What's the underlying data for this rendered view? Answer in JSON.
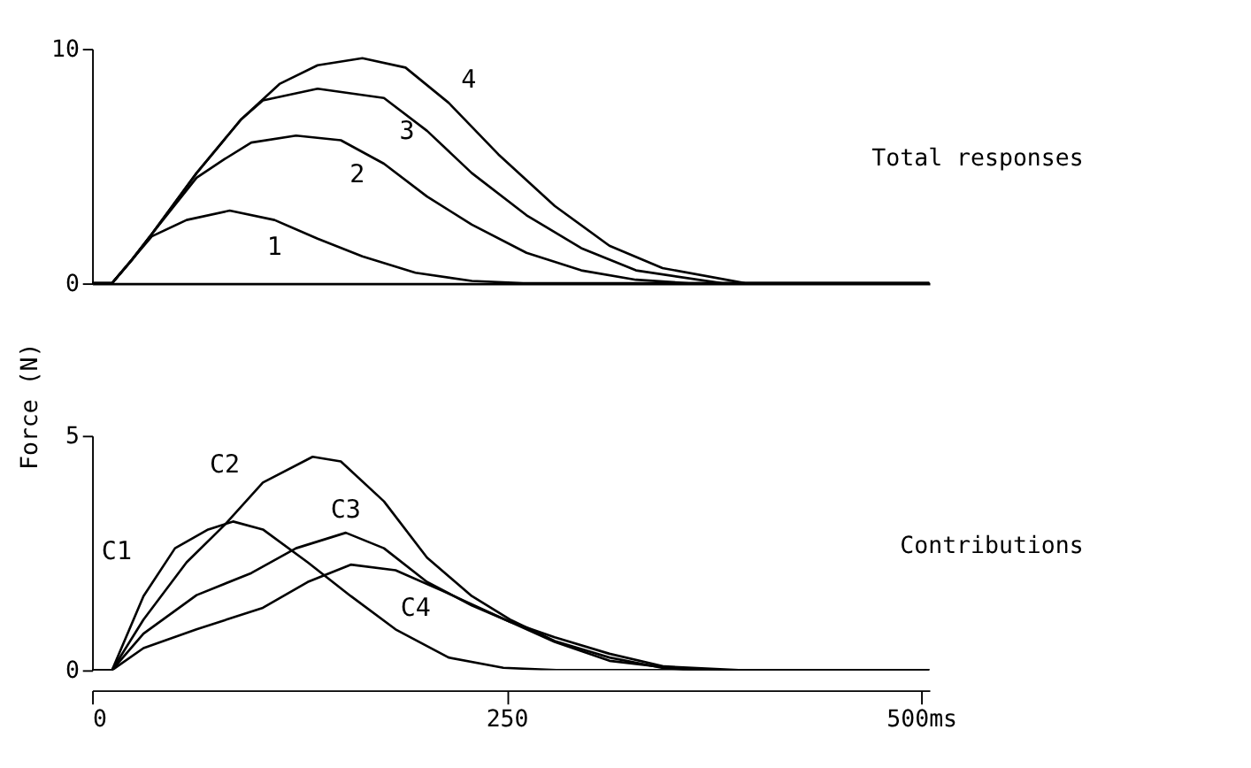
{
  "chart_data": [
    {
      "type": "line",
      "title": "Total responses",
      "xlim": [
        0,
        505
      ],
      "ylim": [
        0,
        10
      ],
      "yticks": [
        0,
        10
      ],
      "tick_labels": "y",
      "grid": false,
      "series": [
        {
          "name": "1",
          "color": "#000000",
          "x": [
            0,
            12,
            24,
            36,
            57,
            83,
            110,
            136,
            163,
            195,
            229,
            260,
            505
          ],
          "values": [
            0,
            0,
            1.0,
            2.0,
            2.7,
            3.1,
            2.7,
            1.9,
            1.15,
            0.45,
            0.1,
            0,
            0
          ]
        },
        {
          "name": "2",
          "color": "#000000",
          "x": [
            0,
            12,
            24,
            36,
            63,
            80,
            96,
            123,
            150,
            176,
            202,
            229,
            262,
            295,
            328,
            360,
            505
          ],
          "values": [
            0,
            0,
            1.0,
            2.1,
            4.5,
            5.3,
            6.0,
            6.3,
            6.1,
            5.1,
            3.7,
            2.5,
            1.3,
            0.55,
            0.15,
            0,
            0
          ]
        },
        {
          "name": "3",
          "color": "#000000",
          "x": [
            0,
            12,
            24,
            36,
            63,
            90,
            103,
            136,
            176,
            202,
            229,
            262,
            295,
            328,
            380,
            505
          ],
          "values": [
            0,
            0,
            1.0,
            2.1,
            4.7,
            7.0,
            7.8,
            8.3,
            7.9,
            6.5,
            4.7,
            2.9,
            1.5,
            0.55,
            0,
            0
          ]
        },
        {
          "name": "4",
          "color": "#000000",
          "x": [
            0,
            12,
            24,
            36,
            63,
            90,
            113,
            136,
            163,
            189,
            215,
            245,
            279,
            312,
            344,
            394,
            505
          ],
          "values": [
            0,
            0,
            1.0,
            2.1,
            4.7,
            7.0,
            8.5,
            9.3,
            9.6,
            9.2,
            7.7,
            5.5,
            3.3,
            1.6,
            0.65,
            0,
            0
          ]
        }
      ]
    },
    {
      "type": "line",
      "title": "Contributions",
      "ylabel": "Force (N)",
      "xlim": [
        0,
        505
      ],
      "ylim": [
        0,
        5
      ],
      "yticks": [
        0,
        5
      ],
      "xticks": [
        0,
        250,
        {
          "value": 500,
          "label": "500ms"
        }
      ],
      "grid": false,
      "series": [
        {
          "name": "C1",
          "color": "#000000",
          "x": [
            0,
            12,
            31,
            50,
            70,
            85,
            103,
            130,
            156,
            183,
            215,
            248,
            280,
            505
          ],
          "values": [
            0,
            0,
            1.58,
            2.6,
            3.0,
            3.17,
            3.0,
            2.3,
            1.58,
            0.87,
            0.27,
            0.05,
            0,
            0
          ]
        },
        {
          "name": "C2",
          "color": "#000000",
          "x": [
            0,
            12,
            31,
            57,
            80,
            103,
            133,
            150,
            176,
            202,
            229,
            252,
            279,
            312,
            345,
            370,
            505
          ],
          "values": [
            0,
            0,
            1.08,
            2.3,
            3.1,
            4.0,
            4.55,
            4.45,
            3.6,
            2.4,
            1.58,
            1.08,
            0.62,
            0.27,
            0.04,
            0,
            0
          ]
        },
        {
          "name": "C3",
          "color": "#000000",
          "x": [
            0,
            12,
            31,
            63,
            96,
            123,
            153,
            176,
            202,
            229,
            252,
            279,
            312,
            360,
            505
          ],
          "values": [
            0,
            0,
            0.78,
            1.6,
            2.07,
            2.6,
            2.93,
            2.6,
            1.88,
            1.38,
            1.03,
            0.6,
            0.2,
            0,
            0
          ]
        },
        {
          "name": "C4",
          "color": "#000000",
          "x": [
            0,
            12,
            31,
            63,
            103,
            130,
            156,
            183,
            212,
            252,
            279,
            312,
            345,
            390,
            505
          ],
          "values": [
            0,
            0,
            0.47,
            0.87,
            1.33,
            1.88,
            2.25,
            2.13,
            1.68,
            1.03,
            0.7,
            0.35,
            0.08,
            0,
            0
          ]
        }
      ]
    }
  ]
}
